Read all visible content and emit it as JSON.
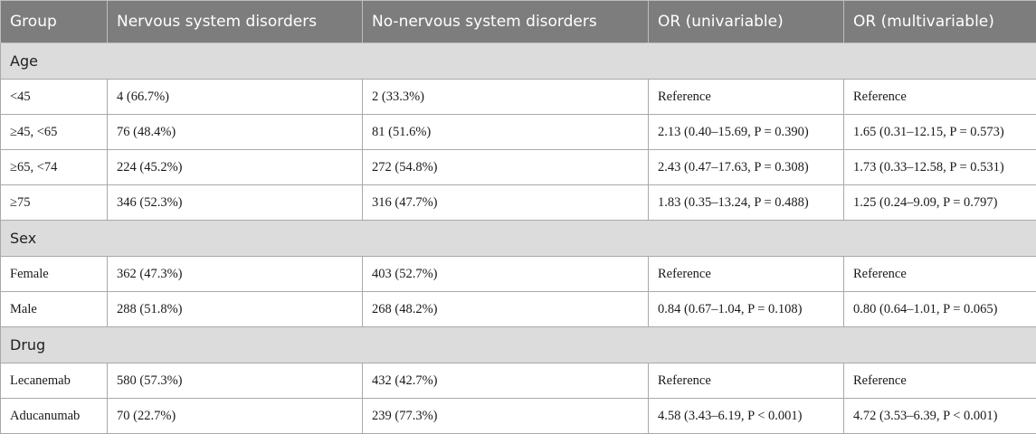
{
  "headers": [
    "Group",
    "Nervous system disorders",
    "No-nervous system disorders",
    "OR (univariable)",
    "OR (multivariable)"
  ],
  "sections": [
    {
      "title": "Age",
      "rows": [
        [
          "<45",
          "4 (66.7%)",
          "2 (33.3%)",
          "Reference",
          "Reference"
        ],
        [
          "≥45, <65",
          "76 (48.4%)",
          "81 (51.6%)",
          "2.13 (0.40–15.69, P = 0.390)",
          "1.65 (0.31–12.15, P = 0.573)"
        ],
        [
          "≥65, <74",
          "224 (45.2%)",
          "272 (54.8%)",
          "2.43 (0.47–17.63, P = 0.308)",
          "1.73 (0.33–12.58, P = 0.531)"
        ],
        [
          "≥75",
          "346 (52.3%)",
          "316 (47.7%)",
          "1.83 (0.35–13.24, P = 0.488)",
          "1.25 (0.24–9.09, P = 0.797)"
        ]
      ]
    },
    {
      "title": "Sex",
      "rows": [
        [
          "Female",
          "362 (47.3%)",
          "403 (52.7%)",
          "Reference",
          "Reference"
        ],
        [
          "Male",
          "288 (51.8%)",
          "268 (48.2%)",
          "0.84 (0.67–1.04, P = 0.108)",
          "0.80 (0.64–1.01, P = 0.065)"
        ]
      ]
    },
    {
      "title": "Drug",
      "rows": [
        [
          "Lecanemab",
          "580 (57.3%)",
          "432 (42.7%)",
          "Reference",
          "Reference"
        ],
        [
          "Aducanumab",
          "70 (22.7%)",
          "239 (77.3%)",
          "4.58 (3.43–6.19, P < 0.001)",
          "4.72 (3.53–6.39, P < 0.001)"
        ]
      ]
    }
  ]
}
